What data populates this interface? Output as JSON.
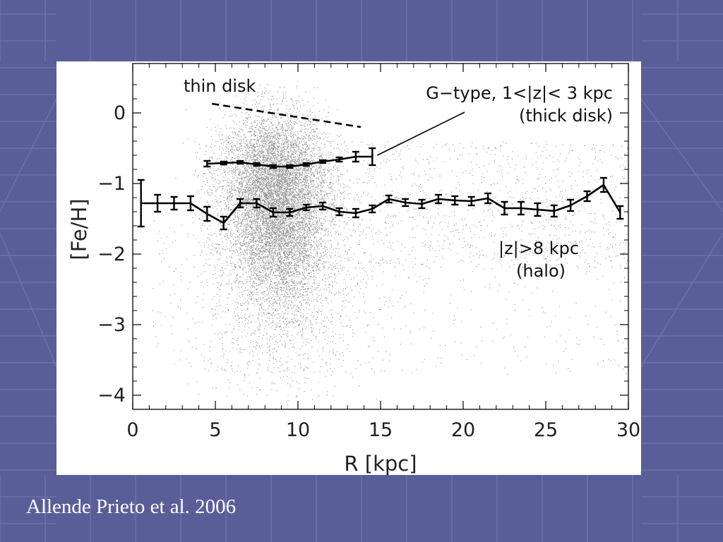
{
  "slide": {
    "caption": "Allende Prieto et al. 2006",
    "background_color": "#5a5e98",
    "accent_grid_color": "#7c80b6"
  },
  "chart_data": {
    "type": "scatter",
    "xlabel": "R [kpc]",
    "ylabel": "[Fe/H]",
    "xlim": [
      0,
      30
    ],
    "ylim": [
      -4.2,
      0.7
    ],
    "xticks": [
      0,
      5,
      10,
      15,
      20,
      25,
      30
    ],
    "yticks": [
      0,
      -1,
      -2,
      -3,
      -4
    ],
    "grid": false,
    "annotations": [
      {
        "text": "thin disk",
        "near": "top-left, above dashed line"
      },
      {
        "text": "G−type, 1<|z|< 3 kpc",
        "near": "top-right"
      },
      {
        "text": "(thick disk)",
        "near": "top-right"
      },
      {
        "text": "|z|>8 kpc",
        "near": "right, below halo curve"
      },
      {
        "text": "(halo)",
        "near": "right, below halo curve"
      }
    ],
    "thin_disk_line": {
      "style": "dashed",
      "x": [
        4.8,
        13.8
      ],
      "y": [
        0.13,
        -0.2
      ]
    },
    "series": [
      {
        "style": "line-with-errorbars",
        "x": [
          4.5,
          5.5,
          6.5,
          7.5,
          8.5,
          9.5,
          10.5,
          11.5,
          12.5,
          13.5,
          14.5
        ],
        "y": [
          -0.72,
          -0.71,
          -0.7,
          -0.73,
          -0.76,
          -0.76,
          -0.73,
          -0.69,
          -0.66,
          -0.62,
          -0.62
        ],
        "yerr": [
          0.04,
          0.02,
          0.02,
          0.02,
          0.02,
          0.02,
          0.02,
          0.02,
          0.03,
          0.07,
          0.12
        ]
      },
      {
        "style": "line-with-errorbars",
        "x": [
          0.5,
          1.5,
          2.5,
          3.5,
          4.5,
          5.5,
          6.5,
          7.5,
          8.5,
          9.5,
          10.5,
          11.5,
          12.5,
          13.5,
          14.5,
          15.5,
          16.5,
          17.5,
          18.5,
          19.5,
          20.5,
          21.5,
          22.5,
          23.5,
          24.5,
          25.5,
          26.5,
          27.5,
          28.5,
          29.5
        ],
        "y": [
          -1.28,
          -1.28,
          -1.28,
          -1.28,
          -1.43,
          -1.56,
          -1.28,
          -1.28,
          -1.41,
          -1.41,
          -1.34,
          -1.32,
          -1.4,
          -1.42,
          -1.36,
          -1.22,
          -1.27,
          -1.29,
          -1.22,
          -1.24,
          -1.25,
          -1.21,
          -1.35,
          -1.35,
          -1.37,
          -1.39,
          -1.31,
          -1.18,
          -1.02,
          -1.41
        ],
        "yerr": [
          0.33,
          0.12,
          0.09,
          0.1,
          0.1,
          0.09,
          0.06,
          0.06,
          0.06,
          0.05,
          0.04,
          0.05,
          0.05,
          0.06,
          0.05,
          0.05,
          0.05,
          0.06,
          0.06,
          0.06,
          0.06,
          0.07,
          0.09,
          0.09,
          0.09,
          0.08,
          0.08,
          0.07,
          0.1,
          0.09
        ]
      }
    ],
    "scatter_cloud": {
      "center": [
        8.6,
        -0.95
      ],
      "description_points": "~dense cloud of individual stars"
    }
  }
}
